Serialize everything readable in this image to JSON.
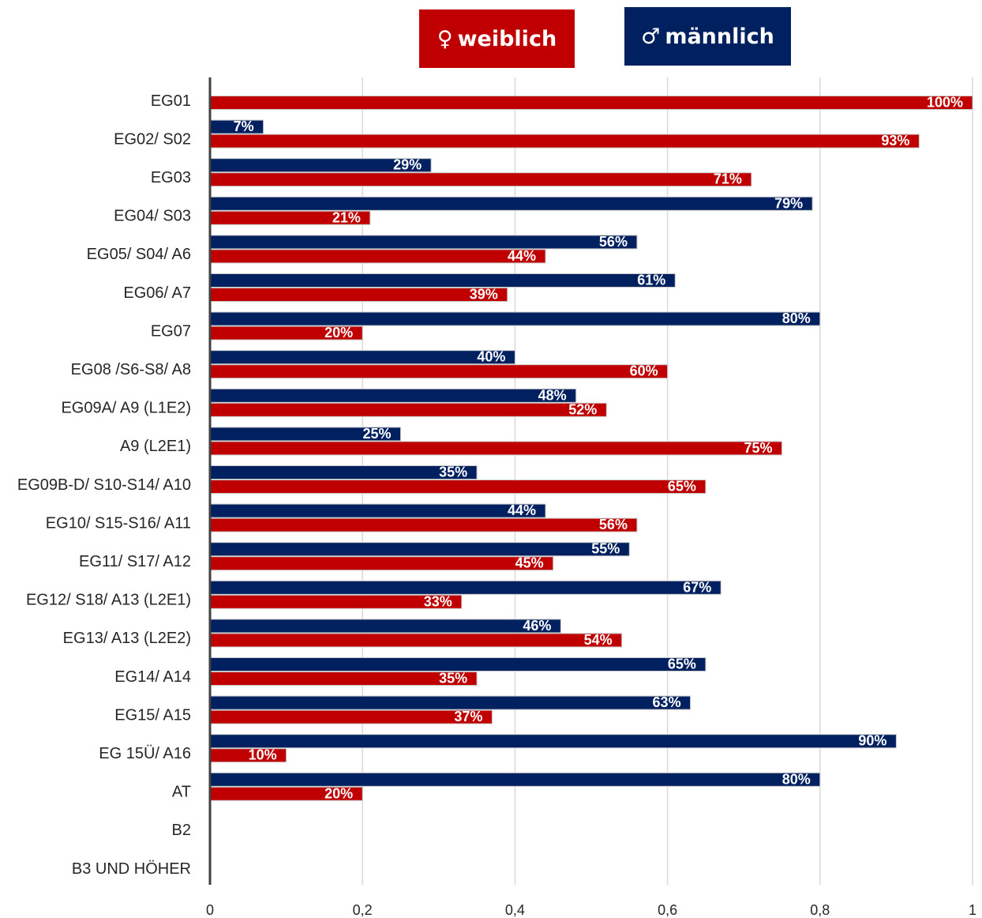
{
  "legend": {
    "female": {
      "symbol": "♀",
      "label": "weiblich",
      "color": "#C00000"
    },
    "male": {
      "symbol": "♂",
      "label": "männlich",
      "color": "#002060"
    }
  },
  "chart_data": {
    "type": "bar",
    "orientation": "horizontal",
    "title": "",
    "xlabel": "",
    "ylabel": "",
    "xlim": [
      0,
      1
    ],
    "x_ticks": [
      "0",
      "0,2",
      "0,4",
      "0,6",
      "0,8",
      "1"
    ],
    "x_tick_values": [
      0,
      0.2,
      0.4,
      0.6,
      0.8,
      1
    ],
    "grid": true,
    "legend_position": "top",
    "categories": [
      "EG01",
      "EG02/ S02",
      "EG03",
      "EG04/ S03",
      "EG05/ S04/ A6",
      "EG06/ A7",
      "EG07",
      "EG08 /S6-S8/ A8",
      "EG09A/ A9 (L1E2)",
      "A9 (L2E1)",
      "EG09B-D/ S10-S14/ A10",
      "EG10/ S15-S16/ A11",
      "EG11/ S17/ A12",
      "EG12/ S18/ A13 (L2E1)",
      "EG13/ A13 (L2E2)",
      "EG14/ A14",
      "EG15/ A15",
      "EG 15Ü/ A16",
      "AT",
      "B2",
      "B3 UND HÖHER"
    ],
    "series": [
      {
        "name": "♂ männlich",
        "color": "#002060",
        "values": [
          null,
          0.07,
          0.29,
          0.79,
          0.56,
          0.61,
          0.8,
          0.4,
          0.48,
          0.25,
          0.35,
          0.44,
          0.55,
          0.67,
          0.46,
          0.65,
          0.63,
          0.9,
          0.8,
          null,
          null
        ],
        "labels": [
          "",
          "7%",
          "29%",
          "79%",
          "56%",
          "61%",
          "80%",
          "40%",
          "48%",
          "25%",
          "35%",
          "44%",
          "55%",
          "67%",
          "46%",
          "65%",
          "63%",
          "90%",
          "80%",
          "",
          ""
        ]
      },
      {
        "name": "♀ weiblich",
        "color": "#C00000",
        "values": [
          1.0,
          0.93,
          0.71,
          0.21,
          0.44,
          0.39,
          0.2,
          0.6,
          0.52,
          0.75,
          0.65,
          0.56,
          0.45,
          0.33,
          0.54,
          0.35,
          0.37,
          0.1,
          0.2,
          null,
          null
        ],
        "labels": [
          "100%",
          "93%",
          "71%",
          "21%",
          "44%",
          "39%",
          "20%",
          "60%",
          "52%",
          "75%",
          "65%",
          "56%",
          "45%",
          "33%",
          "54%",
          "35%",
          "37%",
          "10%",
          "20%",
          "",
          ""
        ]
      }
    ]
  }
}
